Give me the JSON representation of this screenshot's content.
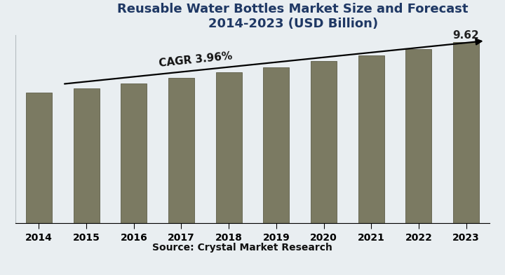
{
  "chart_data": {
    "type": "bar",
    "title": "Reusable Water Bottles Market Size and Forecast 2014-2023 (USD Billion)",
    "categories": [
      "2014",
      "2015",
      "2016",
      "2017",
      "2018",
      "2019",
      "2020",
      "2021",
      "2022",
      "2023"
    ],
    "values": [
      6.94,
      7.16,
      7.42,
      7.72,
      8.02,
      8.28,
      8.61,
      8.91,
      9.25,
      9.62
    ],
    "value_labels": [
      null,
      null,
      null,
      null,
      null,
      null,
      null,
      null,
      null,
      "9.62"
    ],
    "data_labels": true,
    "color": "#7b7a62",
    "ylim": [
      0,
      10
    ],
    "yticks": [],
    "tick_labels": "x",
    "grid": false,
    "annotations": [
      "CAGR 3.96%"
    ],
    "source": "Source: Crystal Market Research"
  }
}
